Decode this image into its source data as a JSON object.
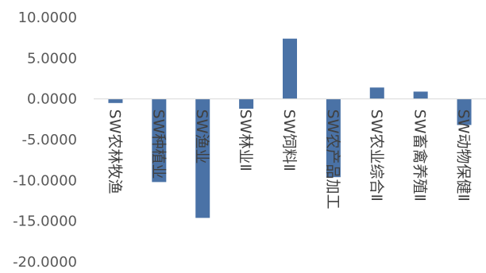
{
  "chart_data": {
    "type": "bar",
    "title": "",
    "xlabel": "",
    "ylabel": "",
    "categories": [
      "SW农林牧渔",
      "SW种植业",
      "SW渔业",
      "SW林业Ⅱ",
      "SW饲料Ⅱ",
      "SW农产品加工",
      "SW农业综合Ⅱ",
      "SW畜禽养殖Ⅱ",
      "SW动物保健Ⅱ"
    ],
    "values": [
      -0.5,
      -10.2,
      -14.6,
      -1.2,
      7.4,
      -9.6,
      1.4,
      0.9,
      -3.2
    ],
    "ylim": [
      -20,
      10
    ],
    "yticks": [
      "10.0000",
      "5.0000",
      "0.0000",
      "-5.0000",
      "-10.0000",
      "-15.0000",
      "-20.0000"
    ],
    "bar_color": "#4a72a6",
    "grid": false,
    "legend": "none"
  }
}
